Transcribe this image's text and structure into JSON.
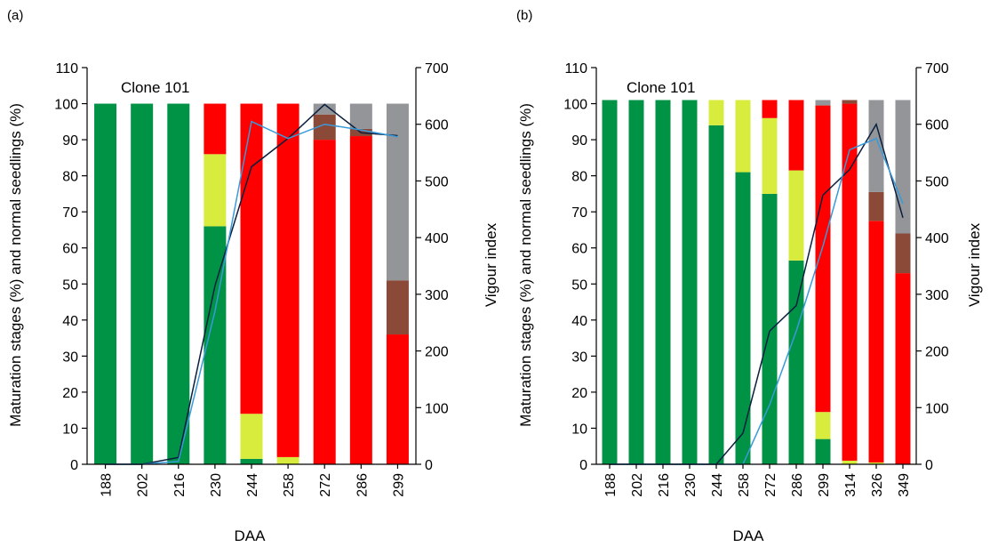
{
  "colors": {
    "green": "#009345",
    "yellowgreen": "#d7ec3d",
    "red": "#ff0000",
    "brown": "#8b4937",
    "grey": "#939598",
    "vigour_dark": "#0b1f3f",
    "vigour_light": "#3a9ad9"
  },
  "chart_data": [
    {
      "panel": "(a)",
      "type": "bar",
      "stacked": true,
      "annotation": "Clone 101",
      "xlabel": "DAA",
      "ylabel": "Maturation stages (%) and normal seedlings (%)",
      "y2label": "Vigour index",
      "ylim": [
        0,
        110
      ],
      "yticks": [
        0,
        10,
        20,
        30,
        40,
        50,
        60,
        70,
        80,
        90,
        100,
        110
      ],
      "y2lim": [
        0,
        700
      ],
      "y2ticks": [
        0,
        100,
        200,
        300,
        400,
        500,
        600,
        700
      ],
      "categories": [
        "188",
        "202",
        "216",
        "230",
        "244",
        "258",
        "272",
        "286",
        "299"
      ],
      "series": [
        {
          "color_key": "green",
          "values": [
            100,
            100,
            100,
            66,
            1.5,
            0,
            0,
            0,
            0
          ]
        },
        {
          "color_key": "yellowgreen",
          "values": [
            0,
            0,
            0,
            20,
            12.5,
            2,
            0,
            0,
            0
          ]
        },
        {
          "color_key": "red",
          "values": [
            0,
            0,
            0,
            14,
            86,
            98,
            90,
            91,
            36
          ]
        },
        {
          "color_key": "brown",
          "values": [
            0,
            0,
            0,
            0,
            0,
            0,
            7,
            2,
            15
          ]
        },
        {
          "color_key": "grey",
          "values": [
            0,
            0,
            0,
            0,
            0,
            0,
            3,
            7,
            49
          ]
        }
      ],
      "lines": [
        {
          "color_key": "vigour_dark",
          "values": [
            0,
            0,
            12,
            315,
            525,
            575,
            635,
            585,
            580
          ]
        },
        {
          "color_key": "vigour_light",
          "values": [
            0,
            0,
            5,
            270,
            605,
            575,
            600,
            590,
            578
          ]
        }
      ],
      "grid": false
    },
    {
      "panel": "(b)",
      "type": "bar",
      "stacked": true,
      "annotation": "Clone 101",
      "xlabel": "DAA",
      "ylabel": "Maturation stages (%) and normal seedlings (%)",
      "y2label": "Vigour index",
      "ylim": [
        0,
        110
      ],
      "yticks": [
        0,
        10,
        20,
        30,
        40,
        50,
        60,
        70,
        80,
        90,
        100,
        110
      ],
      "y2lim": [
        0,
        700
      ],
      "y2ticks": [
        0,
        100,
        200,
        300,
        400,
        500,
        600,
        700
      ],
      "categories": [
        "188",
        "202",
        "216",
        "230",
        "244",
        "258",
        "272",
        "286",
        "299",
        "314",
        "326",
        "349"
      ],
      "series": [
        {
          "color_key": "green",
          "values": [
            101,
            101,
            101,
            101,
            94,
            81,
            75,
            56.5,
            7,
            0,
            0,
            0
          ]
        },
        {
          "color_key": "yellowgreen",
          "values": [
            0,
            0,
            0,
            0,
            7,
            20,
            21,
            25,
            7.5,
            1,
            0.5,
            0
          ]
        },
        {
          "color_key": "red",
          "values": [
            0,
            0,
            0,
            0,
            0,
            0,
            5,
            19.5,
            85,
            99,
            67,
            53
          ]
        },
        {
          "color_key": "brown",
          "values": [
            0,
            0,
            0,
            0,
            0,
            0,
            0,
            0,
            0,
            1,
            8,
            11
          ]
        },
        {
          "color_key": "grey",
          "values": [
            0,
            0,
            0,
            0,
            0,
            0,
            0,
            0,
            1.5,
            0,
            25.5,
            37
          ]
        }
      ],
      "lines": [
        {
          "color_key": "vigour_dark",
          "values": [
            0,
            0,
            0,
            0,
            0,
            55,
            235,
            280,
            475,
            520,
            600,
            435
          ]
        },
        {
          "color_key": "vigour_light",
          "values": [
            0,
            0,
            0,
            0,
            0,
            0,
            105,
            235,
            385,
            555,
            575,
            460
          ]
        }
      ],
      "grid": false
    }
  ]
}
